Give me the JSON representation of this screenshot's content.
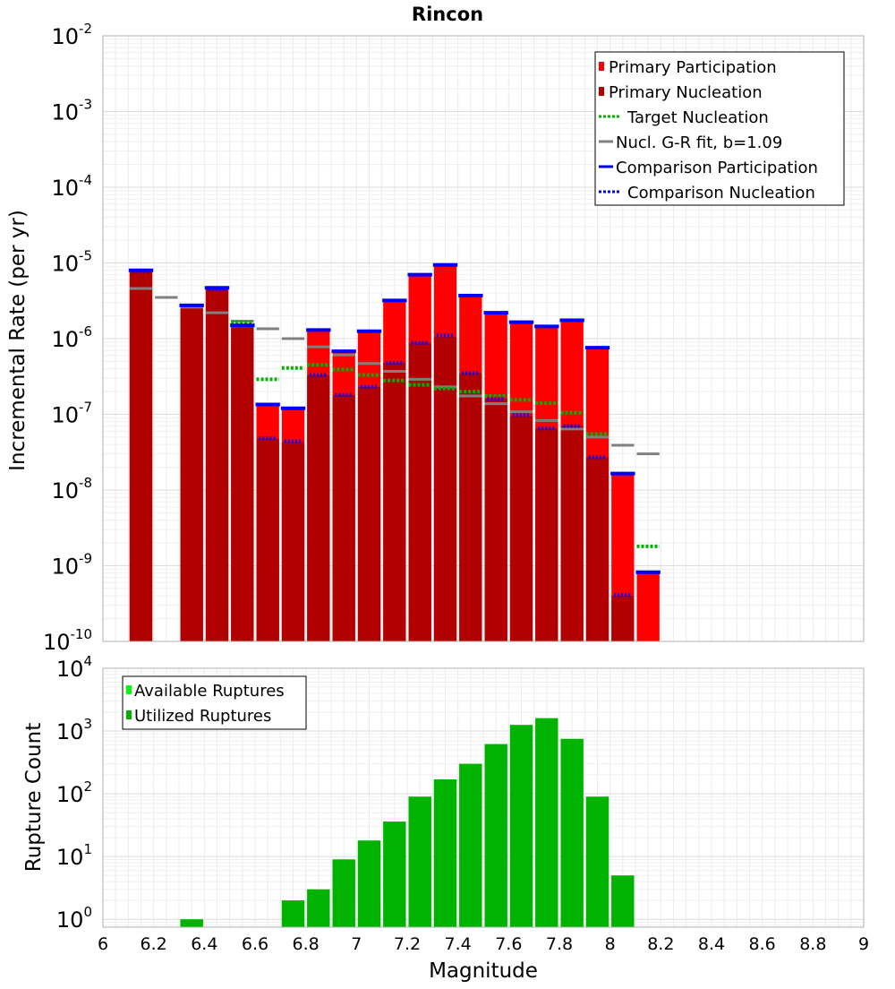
{
  "chart_data": [
    {
      "type": "bar",
      "title": "Rincon",
      "xlabel": "",
      "ylabel": "Incremental Rate (per yr)",
      "y_scale": "log",
      "xlim": [
        6,
        9
      ],
      "ylim": [
        1e-10,
        0.01
      ],
      "y_ticks": [
        {
          "base": "10",
          "exp": "-10"
        },
        {
          "base": "10",
          "exp": "-9"
        },
        {
          "base": "10",
          "exp": "-8"
        },
        {
          "base": "10",
          "exp": "-7"
        },
        {
          "base": "10",
          "exp": "-6"
        },
        {
          "base": "10",
          "exp": "-5"
        },
        {
          "base": "10",
          "exp": "-4"
        },
        {
          "base": "10",
          "exp": "-3"
        },
        {
          "base": "10",
          "exp": "-2"
        }
      ],
      "grid": true,
      "legend_position": "top-right",
      "legend": [
        {
          "label": "Primary Participation",
          "color": "#ff0000",
          "style": "bar"
        },
        {
          "label": "Primary Nucleation",
          "color": "#b20000",
          "style": "bar"
        },
        {
          "label": "Target Nucleation",
          "color": "#00b300",
          "style": "dotted"
        },
        {
          "label": "Nucl. G-R fit, b=1.09",
          "color": "#808080",
          "style": "solid"
        },
        {
          "label": "Comparison Participation",
          "color": "#0000ff",
          "style": "solid"
        },
        {
          "label": "Comparison Nucleation",
          "color": "#0000ff",
          "style": "dotted"
        }
      ],
      "colors": {
        "primary_participation": "#ff0000",
        "primary_nucleation": "#b20000",
        "target_nucleation": "#00b300",
        "gr_fit": "#808080",
        "comparison_participation": "#0000ff",
        "comparison_nucleation": "#0000ff",
        "nucleation_marker": "#3a0000"
      },
      "magnitudes": [
        6.15,
        6.25,
        6.35,
        6.45,
        6.55,
        6.65,
        6.75,
        6.85,
        6.95,
        7.05,
        7.15,
        7.25,
        7.35,
        7.45,
        7.55,
        7.65,
        7.75,
        7.85,
        7.95,
        8.05,
        8.15
      ],
      "series": [
        {
          "name": "Primary Participation",
          "values": [
            8e-06,
            null,
            2.7e-06,
            4.7e-06,
            1.5e-06,
            1.4e-07,
            1.15e-07,
            1.3e-06,
            6.8e-07,
            1.25e-06,
            3.2e-06,
            7e-06,
            9.2e-06,
            3.7e-06,
            2.2e-06,
            1.6e-06,
            1.4e-06,
            1.75e-06,
            7.6e-07,
            1.6e-08,
            8e-10
          ]
        },
        {
          "name": "Primary Nucleation",
          "values": [
            7.5e-06,
            null,
            2.6e-06,
            4.5e-06,
            1.4e-06,
            4.8e-08,
            4.3e-08,
            3.3e-07,
            1.8e-07,
            2.3e-07,
            4.8e-07,
            8.8e-07,
            1.05e-06,
            3.5e-07,
            1.6e-07,
            9.5e-08,
            6.5e-08,
            7e-08,
            2.7e-08,
            4e-10,
            null
          ]
        },
        {
          "name": "Target Nucleation",
          "values": [
            null,
            null,
            null,
            null,
            1.65e-06,
            2.9e-07,
            4.1e-07,
            4.5e-07,
            3.9e-07,
            3.3e-07,
            2.8e-07,
            2.45e-07,
            2.2e-07,
            2e-07,
            1.75e-07,
            1.55e-07,
            1.4e-07,
            1.05e-07,
            5.5e-08,
            1.65e-08,
            1.8e-09
          ]
        },
        {
          "name": "Nucl. G-R fit, b=1.09",
          "values": [
            4.6e-06,
            3.5e-06,
            2.6e-06,
            2.2e-06,
            1.7e-06,
            1.35e-06,
            1e-06,
            7.8e-07,
            6.1e-07,
            4.7e-07,
            3.7e-07,
            2.9e-07,
            2.3e-07,
            1.75e-07,
            1.38e-07,
            1.08e-07,
            8.3e-08,
            6.4e-08,
            5e-08,
            3.9e-08,
            3e-08
          ]
        },
        {
          "name": "Comparison Participation",
          "values": [
            8e-06,
            null,
            2.75e-06,
            4.7e-06,
            1.5e-06,
            1.35e-07,
            1.2e-07,
            1.3e-06,
            6.8e-07,
            1.25e-06,
            3.2e-06,
            7e-06,
            9.4e-06,
            3.7e-06,
            2.2e-06,
            1.65e-06,
            1.45e-06,
            1.75e-06,
            7.6e-07,
            1.65e-08,
            8.2e-10
          ]
        },
        {
          "name": "Comparison Nucleation",
          "values": [
            7.8e-06,
            null,
            null,
            4.5e-06,
            null,
            4.8e-08,
            4.4e-08,
            3.3e-07,
            1.8e-07,
            2.3e-07,
            4.8e-07,
            8.8e-07,
            1.1e-06,
            3.5e-07,
            1.6e-07,
            9.8e-08,
            6.5e-08,
            7e-08,
            2.7e-08,
            4.1e-10,
            null
          ]
        }
      ]
    },
    {
      "type": "bar",
      "title": "",
      "xlabel": "Magnitude",
      "ylabel": "Rupture Count",
      "y_scale": "log",
      "xlim": [
        6,
        9
      ],
      "ylim": [
        0.75,
        10000
      ],
      "x_ticks": [
        "6",
        "6.2",
        "6.4",
        "6.6",
        "6.8",
        "7",
        "7.2",
        "7.4",
        "7.6",
        "7.8",
        "8",
        "8.2",
        "8.4",
        "8.6",
        "8.8",
        "9"
      ],
      "y_ticks": [
        {
          "base": "10",
          "exp": "0"
        },
        {
          "base": "10",
          "exp": "1"
        },
        {
          "base": "10",
          "exp": "2"
        },
        {
          "base": "10",
          "exp": "3"
        },
        {
          "base": "10",
          "exp": "4"
        }
      ],
      "grid": true,
      "legend_position": "top-left",
      "legend": [
        {
          "label": "Available Ruptures",
          "color": "#00ff00",
          "style": "bar"
        },
        {
          "label": "Utilized Ruptures",
          "color": "#00b300",
          "style": "bar"
        }
      ],
      "magnitudes": [
        6.15,
        6.25,
        6.35,
        6.45,
        6.55,
        6.65,
        6.75,
        6.85,
        6.95,
        7.05,
        7.15,
        7.25,
        7.35,
        7.45,
        7.55,
        7.65,
        7.75,
        7.85,
        7.95,
        8.05,
        8.15
      ],
      "series": [
        {
          "name": "Available Ruptures",
          "values": [
            null,
            null,
            1,
            null,
            null,
            null,
            2,
            3,
            9,
            18,
            36,
            90,
            170,
            300,
            620,
            1250,
            1600,
            750,
            90,
            5,
            null
          ]
        },
        {
          "name": "Utilized Ruptures",
          "values": [
            null,
            null,
            1,
            null,
            null,
            null,
            2,
            3,
            9,
            18,
            36,
            90,
            170,
            300,
            620,
            1250,
            1600,
            750,
            90,
            5,
            null
          ]
        }
      ]
    }
  ]
}
